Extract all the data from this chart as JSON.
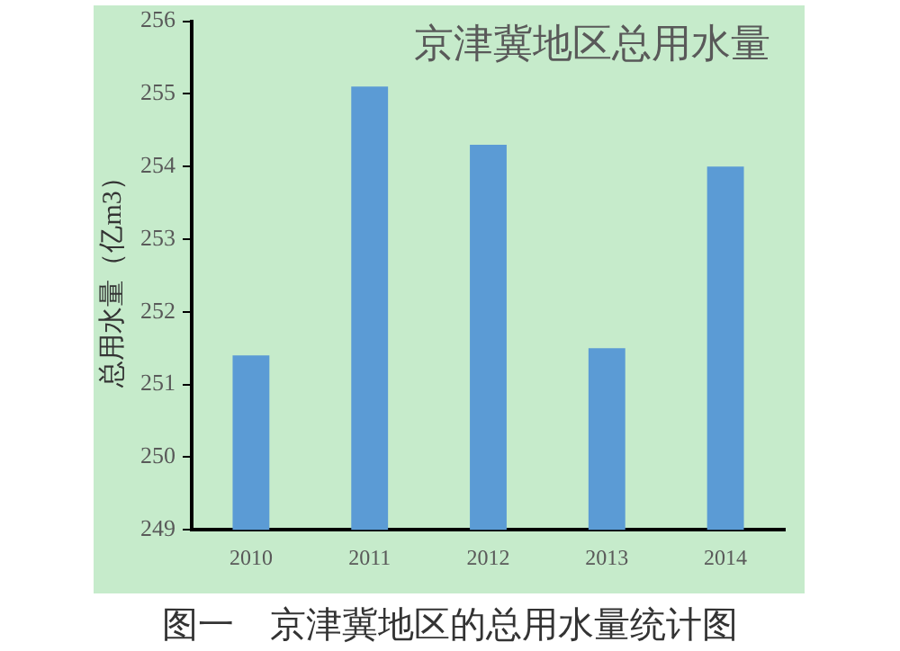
{
  "chart_data": {
    "type": "bar",
    "title": "京津冀地区总用水量",
    "ylabel": "总用水量（亿m3）",
    "categories": [
      "2010",
      "2011",
      "2012",
      "2013",
      "2014"
    ],
    "values": [
      251.4,
      255.1,
      254.3,
      251.5,
      254.0
    ],
    "color": "#5b9bd5",
    "ylim": [
      249,
      256
    ],
    "yticks": [
      249,
      250,
      251,
      252,
      253,
      254,
      255,
      256
    ],
    "grid": false,
    "legend": false,
    "annotations": [
      "图一　京津冀地区的总用水量统计图"
    ]
  }
}
